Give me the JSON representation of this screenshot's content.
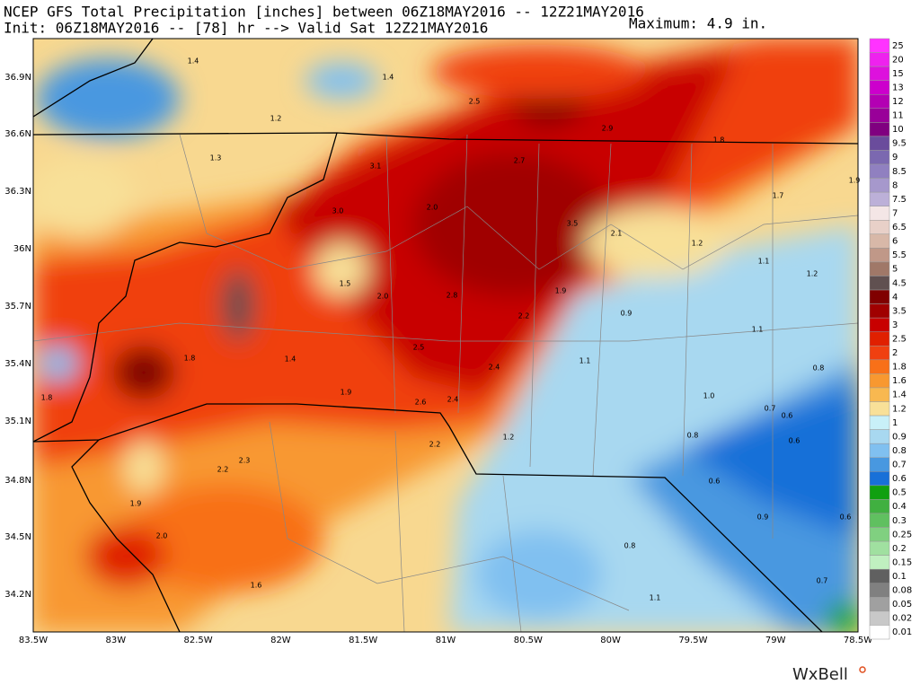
{
  "header": {
    "title": "NCEP GFS Total Precipitation [inches] between 06Z18MAY2016 -- 12Z21MAY2016",
    "subtitle": "Init: 06Z18MAY2016 -- [78] hr --> Valid Sat 12Z21MAY2016",
    "maximum": "Maximum: 4.9 in."
  },
  "lat_labels": [
    "36.9N",
    "36.6N",
    "36.3N",
    "36N",
    "35.7N",
    "35.4N",
    "35.1N",
    "34.8N",
    "34.5N",
    "34.2N"
  ],
  "lon_labels": [
    "83.5W",
    "83W",
    "82.5W",
    "82W",
    "81.5W",
    "81W",
    "80.5W",
    "80W",
    "79.5W",
    "79W",
    "78.5W"
  ],
  "colorbar": [
    {
      "label": "25",
      "color": "#ff33ff"
    },
    {
      "label": "20",
      "color": "#ee22ee"
    },
    {
      "label": "15",
      "color": "#dd11dd"
    },
    {
      "label": "13",
      "color": "#cc00cc"
    },
    {
      "label": "12",
      "color": "#b300b3"
    },
    {
      "label": "11",
      "color": "#990099"
    },
    {
      "label": "10",
      "color": "#800080"
    },
    {
      "label": "9.5",
      "color": "#6a4c9c"
    },
    {
      "label": "9",
      "color": "#7b68b0"
    },
    {
      "label": "8.5",
      "color": "#9080c0"
    },
    {
      "label": "8",
      "color": "#a698cc"
    },
    {
      "label": "7.5",
      "color": "#bcb0d8"
    },
    {
      "label": "7",
      "color": "#f4e6e6"
    },
    {
      "label": "6.5",
      "color": "#e8d0c8"
    },
    {
      "label": "6",
      "color": "#d8b8a8"
    },
    {
      "label": "5.5",
      "color": "#c09888"
    },
    {
      "label": "5",
      "color": "#a07868"
    },
    {
      "label": "4.5",
      "color": "#605050"
    },
    {
      "label": "4",
      "color": "#800000"
    },
    {
      "label": "3.5",
      "color": "#a00000"
    },
    {
      "label": "3",
      "color": "#c80000"
    },
    {
      "label": "2.5",
      "color": "#e02000"
    },
    {
      "label": "2",
      "color": "#f04010"
    },
    {
      "label": "1.8",
      "color": "#f87018"
    },
    {
      "label": "1.6",
      "color": "#f89830"
    },
    {
      "label": "1.4",
      "color": "#f8b850"
    },
    {
      "label": "1.2",
      "color": "#f8e098"
    },
    {
      "label": "1",
      "color": "#c8f0f8"
    },
    {
      "label": "0.9",
      "color": "#a8d8f0"
    },
    {
      "label": "0.8",
      "color": "#80c0f0"
    },
    {
      "label": "0.7",
      "color": "#4898e0"
    },
    {
      "label": "0.6",
      "color": "#1870d8"
    },
    {
      "label": "0.5",
      "color": "#10a010"
    },
    {
      "label": "0.4",
      "color": "#40b040"
    },
    {
      "label": "0.3",
      "color": "#60c060"
    },
    {
      "label": "0.25",
      "color": "#80d080"
    },
    {
      "label": "0.2",
      "color": "#a0e0a0"
    },
    {
      "label": "0.15",
      "color": "#c0f0c0"
    },
    {
      "label": "0.1",
      "color": "#606060"
    },
    {
      "label": "0.08",
      "color": "#808080"
    },
    {
      "label": "0.05",
      "color": "#a0a0a0"
    },
    {
      "label": "0.02",
      "color": "#c8c8c8"
    },
    {
      "label": "0.01",
      "color": "#ffffff"
    }
  ],
  "map_labels": [
    "1.4",
    "1.4",
    "1.2",
    "2.5",
    "2.9",
    "1.8",
    "1.3",
    "3.1",
    "2.7",
    "1.7",
    "1.9",
    "3.0",
    "2.0",
    "3.5",
    "2.1",
    "1.2",
    "1.1",
    "1.2",
    "1.5",
    "2.0",
    "2.8",
    "1.9",
    "2.2",
    "0.9",
    "1.1",
    "1.8",
    "1.4",
    "2.5",
    "2.4",
    "1.1",
    "0.8",
    "1.8",
    "1.9",
    "2.6",
    "2.4",
    "1.0",
    "0.7",
    "0.6",
    "1.2",
    "0.8",
    "0.6",
    "2.2",
    "2.2",
    "2.3",
    "0.6",
    "1.9",
    "2.0",
    "0.9",
    "0.6",
    "0.8",
    "1.6",
    "0.7",
    "1.1"
  ],
  "logo": "WxBell"
}
